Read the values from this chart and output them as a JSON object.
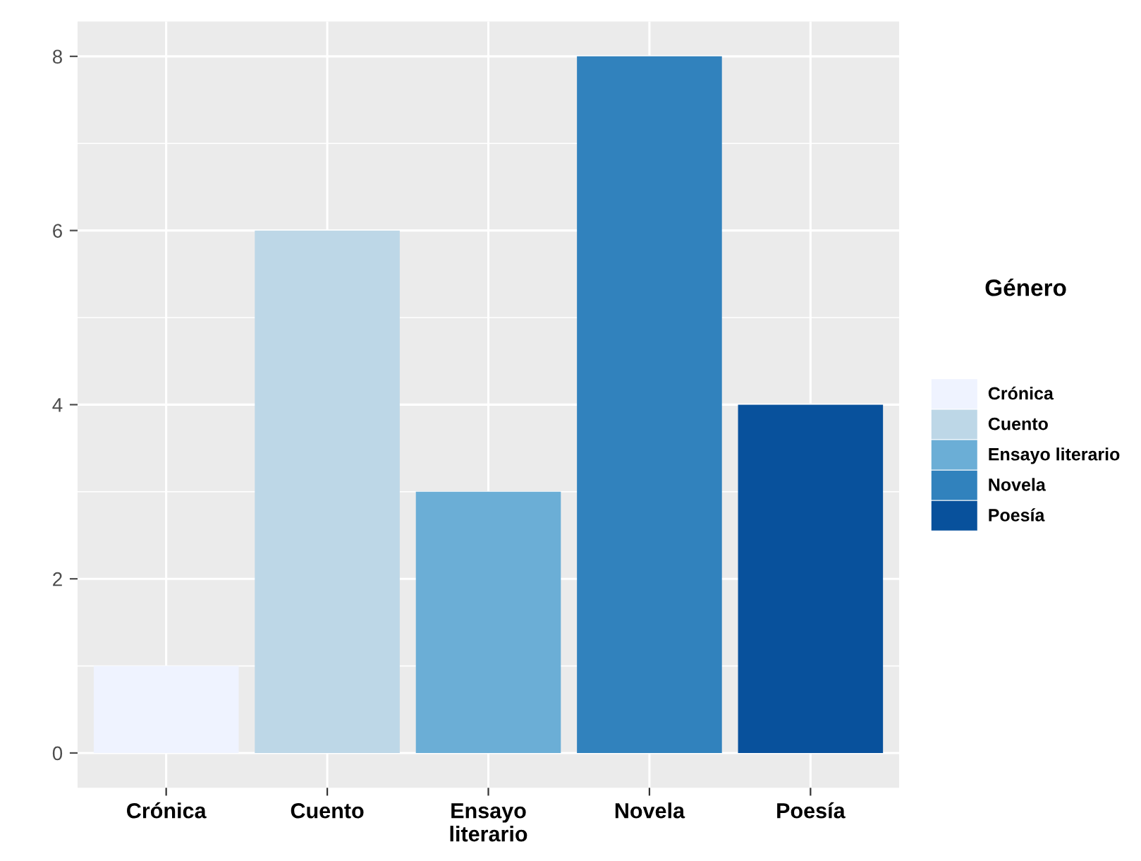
{
  "chart_data": {
    "type": "bar",
    "legend_title": "Género",
    "categories": [
      "Crónica",
      "Cuento",
      "Ensayo literario",
      "Novela",
      "Poesía"
    ],
    "series": [
      {
        "name": "Crónica",
        "color": "#eff3ff",
        "values": [
          1,
          null,
          null,
          null,
          null
        ]
      },
      {
        "name": "Cuento",
        "color": "#bdd7e7",
        "values": [
          null,
          6,
          null,
          null,
          null
        ]
      },
      {
        "name": "Ensayo literario",
        "color": "#6baed6",
        "values": [
          null,
          null,
          3,
          null,
          null
        ]
      },
      {
        "name": "Novela",
        "color": "#3182bd",
        "values": [
          null,
          null,
          null,
          8,
          null
        ]
      },
      {
        "name": "Poesía",
        "color": "#08519c",
        "values": [
          null,
          null,
          null,
          null,
          4
        ]
      }
    ],
    "ylim": [
      -0.4,
      8.4
    ],
    "yticks": [
      0,
      2,
      4,
      6,
      8
    ],
    "grid": true,
    "legend": "right"
  }
}
